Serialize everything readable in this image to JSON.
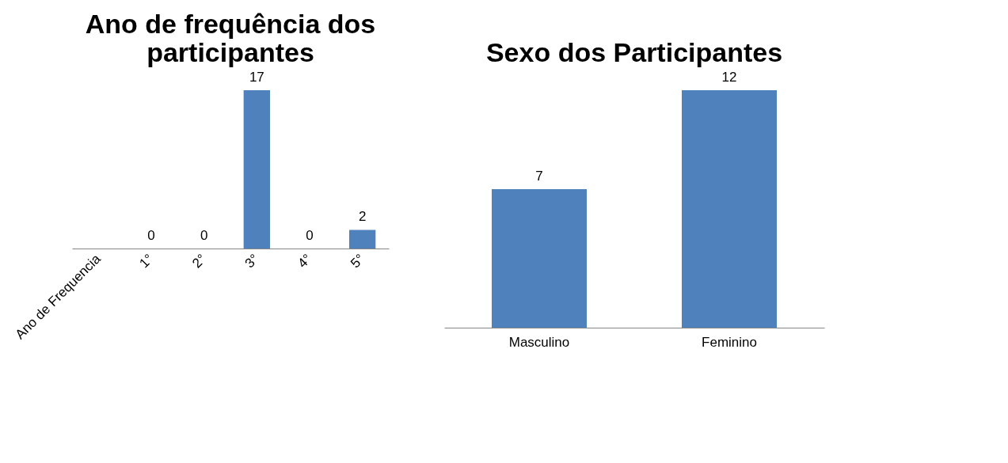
{
  "chart_data": [
    {
      "type": "bar",
      "title": "Ano de frequência dos participantes",
      "categories": [
        "Ano de Frequencia",
        "1°",
        "2°",
        "3°",
        "4°",
        "5°"
      ],
      "values": [
        null,
        0,
        0,
        17,
        0,
        2
      ],
      "color": "#4f81bd",
      "data_labels": true
    },
    {
      "type": "bar",
      "title": "Sexo dos Participantes",
      "categories": [
        "Masculino",
        "Feminino"
      ],
      "values": [
        7,
        12
      ],
      "color": "#4f81bd",
      "data_labels": true
    }
  ]
}
